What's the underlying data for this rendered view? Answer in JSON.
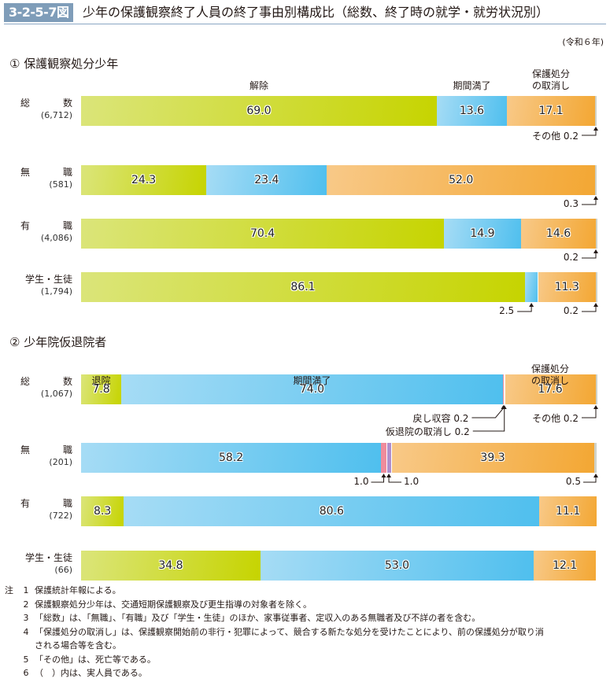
{
  "figure": {
    "number": "3-2-5-7図",
    "title": "少年の保護観察終了人員の終了事由別構成比（総数、終了時の就学・就労状況別）",
    "unit_note": "(令和６年)"
  },
  "colors": {
    "解除": "#c6d400",
    "期間満了": "#4fbfee",
    "保護処分の取消し": "#f3a733",
    "その他": "#cfd2c8",
    "戻し収容": "#ef8c9c",
    "仮退院の取消し": "#b08fcc",
    "title_badge": "#7f9db9"
  },
  "chart_data": [
    {
      "type": "bar",
      "orientation": "horizontal-stacked-100",
      "title": "① 保護観察処分少年",
      "unit": "%",
      "series_names": [
        "解除",
        "期間満了",
        "保護処分の取消し",
        "その他"
      ],
      "category_labels": {
        "解除": "解除",
        "期間満了": "期間満了",
        "保護処分の取消し": "保護処分\nの取消し"
      },
      "rows": [
        {
          "label": "総　　数",
          "n": "(6,712)",
          "values": [
            69.0,
            13.6,
            17.1,
            0.2
          ]
        },
        {
          "label": "無　　職",
          "n": "(581)",
          "values": [
            24.3,
            23.4,
            52.0,
            0.3
          ]
        },
        {
          "label": "有　　職",
          "n": "(4,086)",
          "values": [
            70.4,
            14.9,
            14.6,
            0.2
          ]
        },
        {
          "label": "学生・生徒",
          "n": "(1,794)",
          "values": [
            86.1,
            2.5,
            11.3,
            0.2
          ]
        }
      ],
      "callouts": [
        {
          "row": 0,
          "text": "その他 0.2"
        },
        {
          "row": 1,
          "text": "0.3"
        },
        {
          "row": 2,
          "text": "0.2"
        },
        {
          "row": 3,
          "text": "2.5"
        },
        {
          "row": 3,
          "text": "0.2"
        }
      ]
    },
    {
      "type": "bar",
      "orientation": "horizontal-stacked-100",
      "title": "② 少年院仮退院者",
      "unit": "%",
      "series_names": [
        "退院",
        "期間満了",
        "戻し収容",
        "仮退院の取消し",
        "保護処分の取消し",
        "その他"
      ],
      "category_labels": {
        "退院": "退院",
        "期間満了": "期間満了",
        "保護処分の取消し": "保護処分\nの取消し"
      },
      "rows": [
        {
          "label": "総　　数",
          "n": "(1,067)",
          "values": [
            7.8,
            74.0,
            0.2,
            0.2,
            17.6,
            0.2
          ]
        },
        {
          "label": "無　　職",
          "n": "(201)",
          "values": [
            0.0,
            58.2,
            1.0,
            1.0,
            39.3,
            0.5
          ]
        },
        {
          "label": "有　　職",
          "n": "(722)",
          "values": [
            8.3,
            80.6,
            0.0,
            0.0,
            11.1,
            0.0
          ]
        },
        {
          "label": "学生・生徒",
          "n": "(66)",
          "values": [
            34.8,
            53.0,
            0.0,
            0.0,
            12.1,
            0.0
          ]
        }
      ],
      "callouts": [
        {
          "row": 0,
          "text": "戻し収容 0.2"
        },
        {
          "row": 0,
          "text": "仮退院の取消し 0.2"
        },
        {
          "row": 0,
          "text": "その他 0.2"
        },
        {
          "row": 1,
          "text": "1.0"
        },
        {
          "row": 1,
          "text": "1.0"
        },
        {
          "row": 1,
          "text": "0.5"
        }
      ]
    }
  ],
  "notes": {
    "prefix": "注",
    "items": [
      {
        "num": "1",
        "text": "保護統計年報による。"
      },
      {
        "num": "2",
        "text": "保護観察処分少年は、交通短期保護観察及び更生指導の対象者を除く。"
      },
      {
        "num": "3",
        "text": "「総数」は、「無職」、「有職」及び「学生・生徒」のほか、家事従事者、定収入のある無職者及び不詳の者を含む。"
      },
      {
        "num": "4",
        "text": "「保護処分の取消し」は、保護観察開始前の非行・犯罪によって、競合する新たな処分を受けたことにより、前の保護処分が取り消"
      },
      {
        "num": "",
        "text": "される場合等を含む。"
      },
      {
        "num": "5",
        "text": "「その他」は、死亡等である。"
      },
      {
        "num": "6",
        "text": "（　）内は、実人員である。"
      }
    ]
  }
}
